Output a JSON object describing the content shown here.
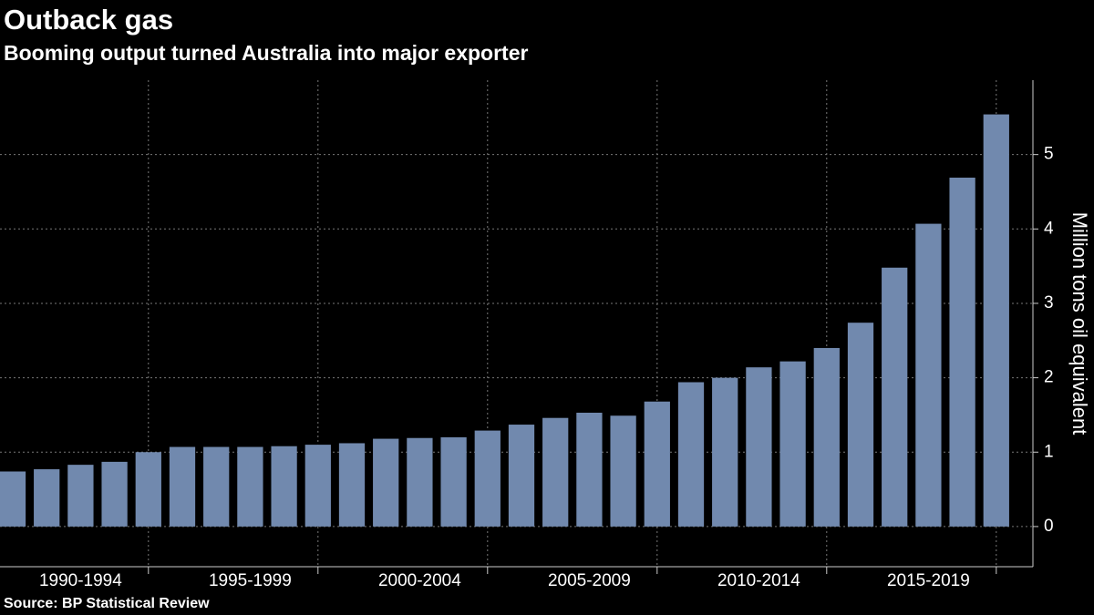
{
  "chart_data": {
    "type": "bar",
    "title": "Outback gas",
    "subtitle": "Booming output turned Australia into major exporter",
    "y_label": "Million tons oil equivalent",
    "source": "Source: BP Statistical Review",
    "categories": [
      null,
      null,
      null,
      null,
      null,
      null,
      null,
      null,
      null,
      null,
      null,
      null,
      null,
      null,
      null,
      null,
      null,
      null,
      null,
      null,
      null,
      null,
      null,
      null,
      null,
      null,
      null,
      null,
      null,
      null
    ],
    "category_groups": [
      "1990-1994",
      "1995-1999",
      "2000-2004",
      "2005-2009",
      "2010-2014",
      "2015-2019"
    ],
    "values": [
      0.74,
      0.77,
      0.83,
      0.87,
      1.0,
      1.07,
      1.07,
      1.07,
      1.08,
      1.1,
      1.12,
      1.18,
      1.19,
      1.2,
      1.29,
      1.37,
      1.46,
      1.53,
      1.49,
      1.68,
      1.94,
      2.0,
      2.14,
      2.22,
      2.4,
      2.74,
      3.48,
      4.07,
      4.69,
      5.54
    ],
    "color": "#7189ae",
    "ylim": [
      -0.54,
      6
    ],
    "yticks": [
      0,
      1,
      2,
      3,
      4,
      5
    ],
    "grid": true
  }
}
